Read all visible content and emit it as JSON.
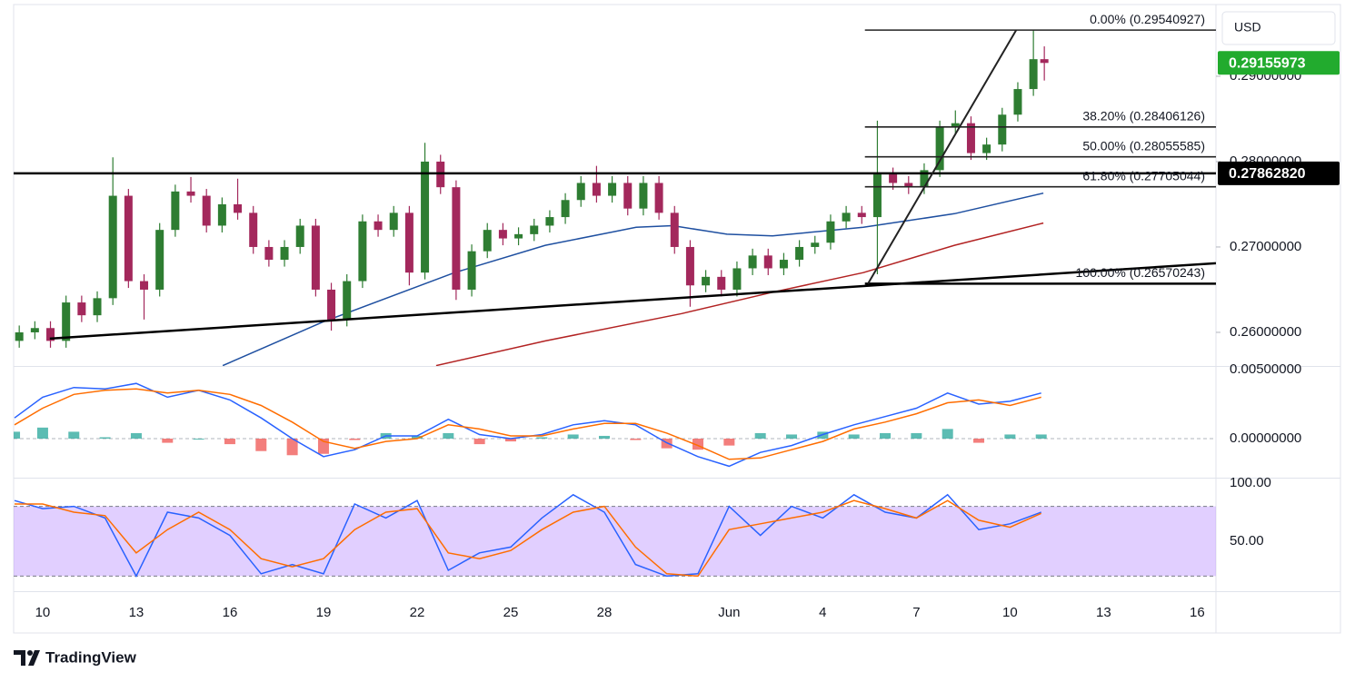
{
  "chart_data": {
    "type": "candlestick",
    "currency": "USD",
    "brand": "TradingView",
    "up_color": "#2e7d32",
    "down_color": "#a3285c",
    "x": [
      -0.75,
      -0.25,
      0.25,
      0.75,
      1.25,
      1.75,
      2.25,
      2.75,
      3.25,
      3.75,
      4.25,
      4.75,
      5.25,
      5.75,
      6.25,
      6.75,
      7.25,
      7.75,
      8.25,
      8.75,
      9.25,
      9.75,
      10.25,
      10.75,
      11.25,
      11.75,
      12.25,
      12.75,
      13.25,
      13.75,
      14.25,
      14.75,
      15.25,
      15.75,
      16.25,
      16.75,
      17.25,
      17.75,
      18.25,
      18.75,
      19.25,
      19.75,
      20.25,
      20.75,
      21.25,
      21.75,
      22.25,
      22.75,
      23.25,
      23.75,
      24.25,
      24.75,
      25.25,
      25.75,
      26.25,
      26.75,
      27.25,
      27.75,
      28.25,
      28.75,
      29.25,
      29.75,
      30.25,
      30.75,
      31.25,
      31.75,
      32.1
    ],
    "open": [
      0.259,
      0.26,
      0.2605,
      0.259,
      0.2635,
      0.262,
      0.264,
      0.276,
      0.266,
      0.265,
      0.272,
      0.2765,
      0.276,
      0.2725,
      0.275,
      0.274,
      0.27,
      0.2685,
      0.27,
      0.2725,
      0.265,
      0.2615,
      0.266,
      0.273,
      0.272,
      0.274,
      0.267,
      0.28,
      0.277,
      0.265,
      0.2695,
      0.272,
      0.271,
      0.2715,
      0.2725,
      0.2735,
      0.2755,
      0.2775,
      0.276,
      0.2775,
      0.2745,
      0.2775,
      0.274,
      0.27,
      0.2655,
      0.2665,
      0.265,
      0.2675,
      0.269,
      0.2675,
      0.2685,
      0.27,
      0.2705,
      0.273,
      0.274,
      0.2735,
      0.2785,
      0.2775,
      0.277,
      0.279,
      0.284,
      0.2845,
      0.281,
      0.282,
      0.2855,
      0.2885,
      0.292
    ],
    "high": [
      0.2608,
      0.2613,
      0.2613,
      0.2643,
      0.2643,
      0.2648,
      0.2805,
      0.2768,
      0.2668,
      0.2728,
      0.2773,
      0.2782,
      0.2768,
      0.2758,
      0.278,
      0.2748,
      0.2708,
      0.2708,
      0.2733,
      0.2733,
      0.2658,
      0.2668,
      0.2738,
      0.2738,
      0.2748,
      0.2748,
      0.2822,
      0.2808,
      0.2778,
      0.2703,
      0.2728,
      0.2728,
      0.2723,
      0.2733,
      0.2743,
      0.2763,
      0.2783,
      0.2795,
      0.2783,
      0.2783,
      0.2783,
      0.2783,
      0.2748,
      0.2708,
      0.2673,
      0.2673,
      0.2683,
      0.2698,
      0.2698,
      0.2693,
      0.2708,
      0.2713,
      0.2738,
      0.2748,
      0.2748,
      0.2848,
      0.2793,
      0.2783,
      0.2798,
      0.2848,
      0.286,
      0.2853,
      0.2828,
      0.2863,
      0.2893,
      0.2954,
      0.2935
    ],
    "low": [
      0.2582,
      0.2592,
      0.2582,
      0.2582,
      0.2612,
      0.2612,
      0.2632,
      0.2652,
      0.2615,
      0.2642,
      0.2712,
      0.2752,
      0.2717,
      0.2717,
      0.2732,
      0.2692,
      0.2677,
      0.2677,
      0.2692,
      0.2642,
      0.2602,
      0.2607,
      0.2652,
      0.2712,
      0.2712,
      0.2655,
      0.2662,
      0.2762,
      0.2638,
      0.2642,
      0.2687,
      0.2702,
      0.2702,
      0.2707,
      0.2717,
      0.2727,
      0.2747,
      0.2752,
      0.2752,
      0.2737,
      0.2737,
      0.2732,
      0.2692,
      0.263,
      0.2647,
      0.2642,
      0.2642,
      0.2667,
      0.2667,
      0.2667,
      0.2677,
      0.2692,
      0.2697,
      0.2722,
      0.2727,
      0.2668,
      0.2767,
      0.2762,
      0.2762,
      0.2782,
      0.2832,
      0.2802,
      0.2802,
      0.2812,
      0.2847,
      0.2877,
      0.2895
    ],
    "close": [
      0.26,
      0.2605,
      0.259,
      0.2635,
      0.262,
      0.264,
      0.276,
      0.266,
      0.265,
      0.272,
      0.2765,
      0.276,
      0.2725,
      0.275,
      0.274,
      0.27,
      0.2685,
      0.27,
      0.2725,
      0.265,
      0.2615,
      0.266,
      0.273,
      0.272,
      0.274,
      0.267,
      0.28,
      0.277,
      0.265,
      0.2695,
      0.272,
      0.271,
      0.2715,
      0.2725,
      0.2735,
      0.2755,
      0.2775,
      0.276,
      0.2775,
      0.2745,
      0.2775,
      0.274,
      0.27,
      0.2655,
      0.2665,
      0.265,
      0.2675,
      0.269,
      0.2675,
      0.2685,
      0.27,
      0.2705,
      0.273,
      0.274,
      0.2735,
      0.2785,
      0.2775,
      0.277,
      0.279,
      0.284,
      0.2845,
      0.281,
      0.282,
      0.2855,
      0.2885,
      0.292,
      0.29155973
    ],
    "xlim": [
      -0.93,
      37.6
    ],
    "xticks": [
      {
        "value": 0,
        "label": "10"
      },
      {
        "value": 3,
        "label": "13"
      },
      {
        "value": 6,
        "label": "16"
      },
      {
        "value": 9,
        "label": "19"
      },
      {
        "value": 12,
        "label": "22"
      },
      {
        "value": 15,
        "label": "25"
      },
      {
        "value": 18,
        "label": "28"
      },
      {
        "value": 22,
        "label": "Jun"
      },
      {
        "value": 25,
        "label": "4"
      },
      {
        "value": 28,
        "label": "7"
      },
      {
        "value": 31,
        "label": "10"
      },
      {
        "value": 34,
        "label": "13"
      },
      {
        "value": 37,
        "label": "16"
      }
    ],
    "ylim": [
      0.25606,
      0.2984
    ],
    "yticks": [
      {
        "value": 0.26,
        "label": "0.26000000"
      },
      {
        "value": 0.27,
        "label": "0.27000000"
      },
      {
        "value": 0.28,
        "label": "0.28000000"
      },
      {
        "value": 0.29,
        "label": "0.29000000"
      }
    ],
    "grid": false,
    "moving_averages": [
      {
        "color": "#1e4fa0",
        "x": [
          5.77,
          8.97,
          13.2,
          16.11,
          19.02,
          20.19,
          21.93,
          23.39,
          26.3,
          29.22,
          32.07
        ],
        "values": [
          0.2561,
          0.2612,
          0.267,
          0.2702,
          0.2723,
          0.2725,
          0.2715,
          0.2713,
          0.2723,
          0.2739,
          0.2763
        ]
      },
      {
        "color": "#b22222",
        "x": [
          12.61,
          16.11,
          20.48,
          23.39,
          26.3,
          29.22,
          32.07
        ],
        "values": [
          0.2561,
          0.259,
          0.2622,
          0.2647,
          0.267,
          0.2702,
          0.2728
        ]
      }
    ],
    "horizontal_line": {
      "value": 0.2786282,
      "label": "0.27862820"
    },
    "trendline": {
      "x": [
        0.23,
        37.6
      ],
      "values": [
        0.25926,
        0.26809
      ]
    },
    "fib": {
      "x": [
        26.35,
        37.6
      ],
      "levels": [
        {
          "label": "0.00% (0.29540927)",
          "value": 0.29540927
        },
        {
          "label": "38.20% (0.28406126)",
          "value": 0.28406126
        },
        {
          "label": "50.00% (0.28055585)",
          "value": 0.28055585
        },
        {
          "label": "61.80% (0.27705044)",
          "value": 0.27705044
        },
        {
          "label": "100.00% (0.26570243)",
          "value": 0.26570243
        }
      ],
      "diagonal": {
        "x": [
          26.45,
          31.2
        ],
        "values": [
          0.2657,
          0.29541
        ]
      }
    },
    "macd": {
      "ylim": [
        -0.00276,
        0.00526
      ],
      "yticks": [
        {
          "value": 0,
          "label": "0.00000000"
        },
        {
          "value": 0.005,
          "label": "0.00500000"
        }
      ],
      "macd_color": "#2962ff",
      "signal_color": "#ff6d00",
      "up_color": "#26a69a",
      "down_color": "#ef5350",
      "x": [
        -0.9,
        0,
        1,
        2,
        3,
        4,
        5,
        6,
        7,
        8,
        9,
        10,
        11,
        12,
        13,
        14,
        15,
        16,
        17,
        18,
        19,
        20,
        21,
        22,
        23,
        24,
        25,
        26,
        27,
        28,
        29,
        30,
        31,
        32
      ],
      "macd": [
        0.0015,
        0.003,
        0.0037,
        0.0036,
        0.004,
        0.003,
        0.0035,
        0.0028,
        0.0015,
        0,
        -0.0013,
        -0.0008,
        0.0002,
        0.0002,
        0.0014,
        0.0003,
        0,
        0.0003,
        0.001,
        0.0013,
        0.001,
        -0.0003,
        -0.0013,
        -0.002,
        -0.001,
        -0.0005,
        0.0003,
        0.001,
        0.0016,
        0.0022,
        0.0033,
        0.0025,
        0.0027,
        0.0033
      ],
      "signal": [
        0.001,
        0.0022,
        0.0032,
        0.0035,
        0.0036,
        0.0033,
        0.0035,
        0.0032,
        0.0024,
        0.0012,
        -0.0002,
        -0.0007,
        -0.0002,
        0,
        0.001,
        0.0007,
        0.0002,
        0.0002,
        0.0007,
        0.0011,
        0.0011,
        0.0004,
        -0.0005,
        -0.0015,
        -0.0014,
        -0.0008,
        -0.0002,
        0.0007,
        0.0012,
        0.0018,
        0.0026,
        0.0028,
        0.0024,
        0.003
      ],
      "histogram": [
        0.0005,
        0.0008,
        0.0005,
        0.0001,
        0.0004,
        -0.0003,
        0,
        -0.0004,
        -0.0009,
        -0.0012,
        -0.0011,
        -0.0001,
        0.0004,
        0.0002,
        0.0004,
        -0.0004,
        -0.0002,
        0.0001,
        0.0003,
        0.0002,
        -0.0001,
        -0.0007,
        -0.0008,
        -0.0005,
        0.0004,
        0.0003,
        0.0005,
        0.0003,
        0.0004,
        0.0004,
        0.0007,
        -0.0003,
        0.0003,
        0.0003
      ]
    },
    "stoch_rsi": {
      "ylim": [
        7.8,
        103.9
      ],
      "yticks": [
        {
          "value": 50,
          "label": "50.00"
        },
        {
          "value": 100,
          "label": "100.00"
        }
      ],
      "bands": [
        20,
        80
      ],
      "band_color": "#b388ff",
      "k_color": "#2962ff",
      "d_color": "#ff6d00",
      "x": [
        -0.9,
        0,
        1,
        2,
        3,
        4,
        5,
        6,
        7,
        8,
        9,
        10,
        11,
        12,
        13,
        14,
        15,
        16,
        17,
        18,
        19,
        20,
        21,
        22,
        23,
        24,
        25,
        26,
        27,
        28,
        29,
        30,
        31,
        32
      ],
      "k": [
        85,
        78,
        80,
        70,
        20,
        75,
        70,
        55,
        22,
        30,
        22,
        82,
        70,
        85,
        25,
        40,
        45,
        70,
        90,
        75,
        30,
        20,
        22,
        80,
        55,
        80,
        70,
        90,
        75,
        70,
        90,
        60,
        65,
        75
      ],
      "d": [
        82,
        82,
        75,
        72,
        40,
        60,
        75,
        60,
        35,
        28,
        35,
        60,
        75,
        78,
        40,
        35,
        42,
        60,
        75,
        80,
        45,
        22,
        20,
        60,
        65,
        70,
        75,
        85,
        78,
        70,
        85,
        68,
        62,
        74
      ]
    }
  }
}
